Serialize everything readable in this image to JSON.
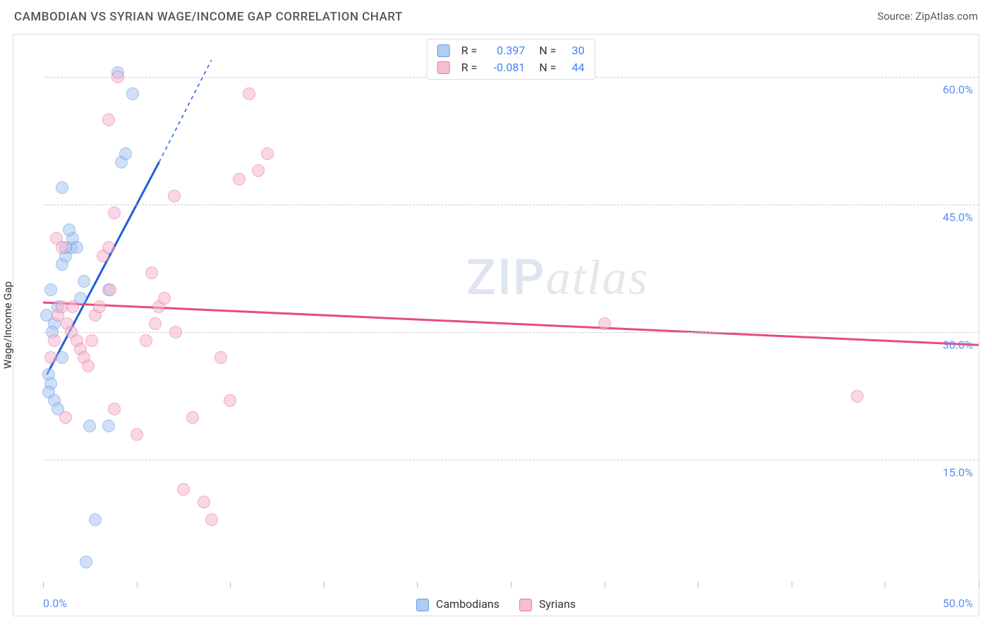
{
  "title": "CAMBODIAN VS SYRIAN WAGE/INCOME GAP CORRELATION CHART",
  "source": "Source: ZipAtlas.com",
  "y_axis_label": "Wage/Income Gap",
  "watermark_zip": "ZIP",
  "watermark_atlas": "atlas",
  "chart": {
    "type": "scatter",
    "background_color": "#ffffff",
    "border_color": "#dddddd",
    "grid_color": "#cccccc",
    "grid_dash": "4,4",
    "tick_color": "#5b8def",
    "label_color": "#333333",
    "title_color": "#555555",
    "xlim": [
      0,
      50
    ],
    "ylim": [
      0,
      65
    ],
    "y_ticks": [
      15,
      30,
      45,
      60
    ],
    "y_tick_labels": [
      "15.0%",
      "30.0%",
      "45.0%",
      "60.0%"
    ],
    "x_tick_positions": [
      0,
      5,
      10,
      15,
      20,
      25,
      30,
      35,
      40,
      45,
      50
    ],
    "x_range_left": "0.0%",
    "x_range_right": "50.0%",
    "marker_radius": 9,
    "series": [
      {
        "key": "cambodians",
        "label": "Cambodians",
        "fill": "#a9c7f0",
        "stroke": "#5b8def",
        "fill_opacity": 0.55,
        "r_label": "R =",
        "r_value": "0.397",
        "n_label": "N =",
        "n_value": "30",
        "trend": {
          "x1": 0.2,
          "y1": 25,
          "x2": 6.2,
          "y2": 50,
          "dash_extend_to": {
            "x": 9,
            "y": 62
          },
          "color": "#1f5fd8",
          "width": 3
        },
        "points": [
          [
            0.3,
            25
          ],
          [
            0.4,
            24
          ],
          [
            0.2,
            32
          ],
          [
            0.6,
            31
          ],
          [
            0.5,
            30
          ],
          [
            0.8,
            33
          ],
          [
            0.4,
            35
          ],
          [
            1.0,
            38
          ],
          [
            1.2,
            39
          ],
          [
            1.5,
            40
          ],
          [
            1.6,
            41
          ],
          [
            1.4,
            42
          ],
          [
            2.0,
            34
          ],
          [
            2.2,
            36
          ],
          [
            0.3,
            23
          ],
          [
            0.6,
            22
          ],
          [
            0.8,
            21
          ],
          [
            1.0,
            27
          ],
          [
            1.2,
            40
          ],
          [
            1.8,
            40
          ],
          [
            2.8,
            8
          ],
          [
            2.5,
            19
          ],
          [
            3.5,
            19
          ],
          [
            2.3,
            3
          ],
          [
            4.8,
            58
          ],
          [
            4.2,
            50
          ],
          [
            4.4,
            51
          ],
          [
            3.5,
            35
          ],
          [
            1.0,
            47
          ],
          [
            4.0,
            60.5
          ]
        ]
      },
      {
        "key": "syrians",
        "label": "Syrians",
        "fill": "#f5b8ce",
        "stroke": "#e86a9a",
        "fill_opacity": 0.55,
        "r_label": "R =",
        "r_value": "-0.081",
        "n_label": "N =",
        "n_value": "44",
        "trend": {
          "x1": 0,
          "y1": 33.5,
          "x2": 50,
          "y2": 28.5,
          "color": "#e54b87",
          "width": 3
        },
        "points": [
          [
            0.4,
            27
          ],
          [
            0.6,
            29
          ],
          [
            0.8,
            32
          ],
          [
            1.0,
            33
          ],
          [
            1.3,
            31
          ],
          [
            1.5,
            30
          ],
          [
            1.6,
            33
          ],
          [
            1.8,
            29
          ],
          [
            2.0,
            28
          ],
          [
            2.2,
            27
          ],
          [
            2.4,
            26
          ],
          [
            2.6,
            29
          ],
          [
            2.8,
            32
          ],
          [
            3.0,
            33
          ],
          [
            3.2,
            39
          ],
          [
            3.5,
            40
          ],
          [
            3.6,
            35
          ],
          [
            1.2,
            20
          ],
          [
            0.7,
            41
          ],
          [
            1.0,
            40
          ],
          [
            5.5,
            29
          ],
          [
            5.8,
            37
          ],
          [
            6.0,
            31
          ],
          [
            6.2,
            33
          ],
          [
            6.5,
            34
          ],
          [
            7.0,
            46
          ],
          [
            7.1,
            30
          ],
          [
            8.0,
            20
          ],
          [
            8.6,
            10
          ],
          [
            9.5,
            27
          ],
          [
            10.0,
            22
          ],
          [
            10.5,
            48
          ],
          [
            11.0,
            58
          ],
          [
            11.5,
            49
          ],
          [
            12.0,
            51
          ],
          [
            4.0,
            60
          ],
          [
            3.5,
            55
          ],
          [
            3.8,
            44
          ],
          [
            30.0,
            31
          ],
          [
            43.5,
            22.5
          ],
          [
            5.0,
            18
          ],
          [
            9.0,
            8
          ],
          [
            7.5,
            11.5
          ],
          [
            3.8,
            21
          ]
        ]
      }
    ]
  }
}
